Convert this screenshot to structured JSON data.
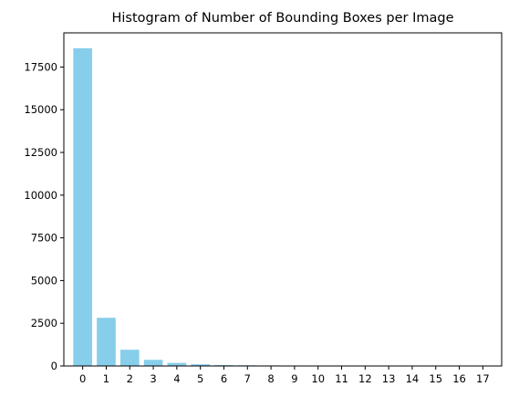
{
  "chart_data": {
    "type": "bar",
    "title": "Histogram of Number of Bounding Boxes per Image",
    "xlabel": "",
    "ylabel": "",
    "categories": [
      "0",
      "1",
      "2",
      "3",
      "4",
      "5",
      "6",
      "7",
      "8",
      "9",
      "10",
      "11",
      "12",
      "13",
      "14",
      "15",
      "16",
      "17"
    ],
    "values": [
      18600,
      2820,
      950,
      360,
      180,
      100,
      55,
      40,
      30,
      12,
      10,
      25,
      6,
      4,
      3,
      2,
      1,
      1
    ],
    "yticks": [
      0,
      2500,
      5000,
      7500,
      10000,
      12500,
      15000,
      17500
    ],
    "ylim": [
      0,
      19500
    ],
    "bar_color": "#87ceeb",
    "grid": false,
    "legend": "none"
  }
}
